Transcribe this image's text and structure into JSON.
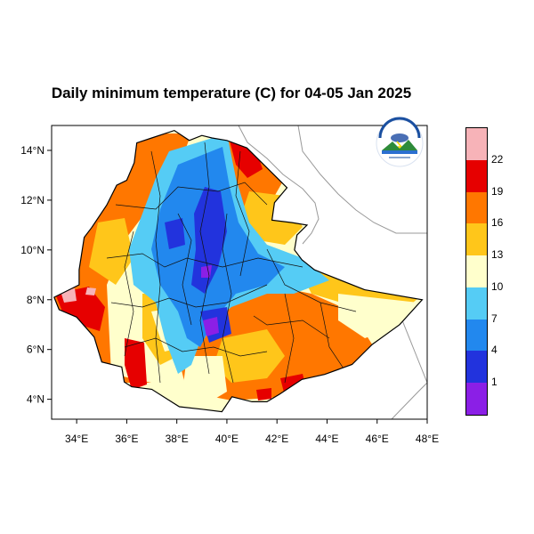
{
  "title": "Daily minimum temperature (C) for 04-05 Jan 2025",
  "map": {
    "lon_range": [
      33,
      48
    ],
    "lat_range": [
      3.2,
      15
    ],
    "x_ticks": [
      {
        "value": 34,
        "label": "34°E"
      },
      {
        "value": 36,
        "label": "36°E"
      },
      {
        "value": 38,
        "label": "38°E"
      },
      {
        "value": 40,
        "label": "40°E"
      },
      {
        "value": 42,
        "label": "42°E"
      },
      {
        "value": 44,
        "label": "44°E"
      },
      {
        "value": 46,
        "label": "46°E"
      },
      {
        "value": 48,
        "label": "48°E"
      }
    ],
    "y_ticks": [
      {
        "value": 14,
        "label": "14°N"
      },
      {
        "value": 12,
        "label": "12°N"
      },
      {
        "value": 10,
        "label": "10°N"
      },
      {
        "value": 8,
        "label": "8°N"
      },
      {
        "value": 6,
        "label": "6°N"
      },
      {
        "value": 4,
        "label": "4°N"
      }
    ]
  },
  "colorbar": {
    "colors": [
      "#8b1fe6",
      "#2233dd",
      "#2288ee",
      "#55ccf5",
      "#ffffcc",
      "#ffc61a",
      "#ff7700",
      "#e60000",
      "#f7b3b8"
    ],
    "labels": [
      "1",
      "4",
      "7",
      "10",
      "13",
      "16",
      "19",
      "22"
    ]
  },
  "logo": {
    "icon": "ethiopian-meteorology-institute-logo"
  }
}
